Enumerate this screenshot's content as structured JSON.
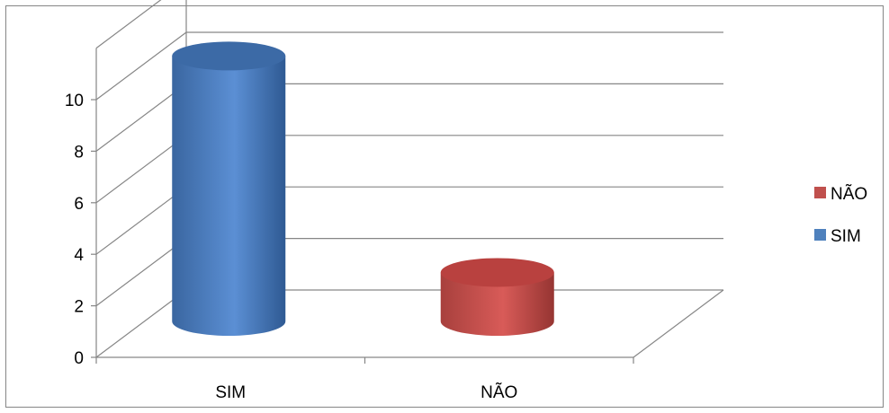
{
  "chart_data": {
    "type": "bar",
    "style": "3d-cylinder",
    "categories": [
      "SIM",
      "NÃO"
    ],
    "series": [
      {
        "name": "SIM",
        "values": [
          10.3,
          null
        ],
        "color": "#4F81BD"
      },
      {
        "name": "NÃO",
        "values": [
          null,
          1.9
        ],
        "color": "#C0504D"
      }
    ],
    "y_ticks": [
      "0",
      "2",
      "4",
      "6",
      "8",
      "10"
    ],
    "ylim": [
      0,
      12
    ],
    "grid": true,
    "legend": {
      "position": "right",
      "entries": [
        "NÃO",
        "SIM"
      ]
    }
  }
}
